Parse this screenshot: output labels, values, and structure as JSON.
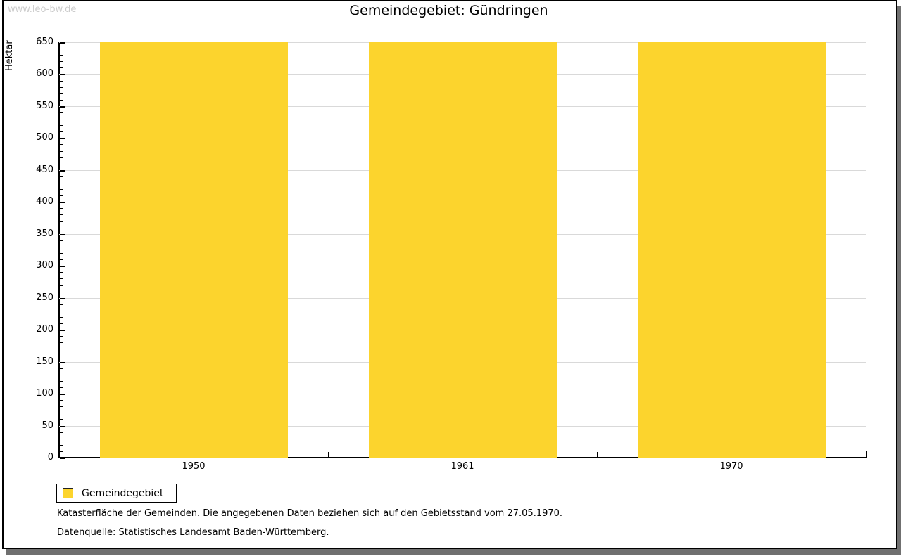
{
  "watermark": "www.leo-bw.de",
  "title": "Gemeindegebiet: Gündringen",
  "legend": {
    "items": [
      {
        "label": "Gemeindegebiet",
        "color": "#fcd42d"
      }
    ]
  },
  "footnotes": {
    "line1": "Katasterfläche der Gemeinden. Die angegebenen Daten beziehen sich auf den Gebietsstand vom 27.05.1970.",
    "line2": "Datenquelle: Statistisches Landesamt Baden-Württemberg."
  },
  "colors": {
    "bar": "#fcd42d",
    "grid": "#d9d9d9",
    "axis": "#000000",
    "watermark": "#cccccc",
    "frame_shadow": "#707070"
  },
  "chart_data": {
    "type": "bar",
    "title": "Gemeindegebiet: Gündringen",
    "categories": [
      "1950",
      "1961",
      "1970"
    ],
    "series": [
      {
        "name": "Gemeindegebiet",
        "values": [
          650,
          650,
          650
        ],
        "color": "#fcd42d"
      }
    ],
    "xlabel": "",
    "ylabel": "Hektar",
    "ylim": [
      0,
      650
    ],
    "ytick_step": 50,
    "minor_tick_step": 10,
    "grid": true,
    "legend_position": "bottom-left"
  }
}
